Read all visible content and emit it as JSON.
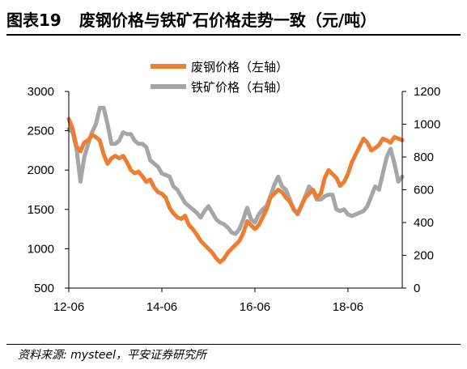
{
  "figure": {
    "label": "图表19",
    "title": "废钢价格与铁矿石价格走势一致（元/吨）",
    "source": "资料来源: mysteel，平安证券研究所"
  },
  "colors": {
    "scrap_steel": "#ED7D31",
    "iron_ore": "#A6A6A6",
    "axis": "#000000"
  },
  "chart_data": {
    "type": "line",
    "x_ticks": [
      "12-06",
      "14-06",
      "16-06",
      "18-06"
    ],
    "x_tick_dates": [
      "2012-06",
      "2014-06",
      "2016-06",
      "2018-06"
    ],
    "xlim": [
      "2012-06",
      "2019-08"
    ],
    "ylim_left": [
      500,
      3000
    ],
    "yticks_left": [
      500,
      1000,
      1500,
      2000,
      2500,
      3000
    ],
    "ylim_right": [
      0,
      1200
    ],
    "yticks_right": [
      0,
      200,
      400,
      600,
      800,
      1000,
      1200
    ],
    "legend_placement": "top-center",
    "grid": false,
    "series": [
      {
        "name": "废钢价格（左轴）",
        "axis": "left",
        "x": [
          "2012-06",
          "2012-07",
          "2012-08",
          "2012-09",
          "2012-10",
          "2012-11",
          "2012-12",
          "2013-01",
          "2013-02",
          "2013-03",
          "2013-04",
          "2013-05",
          "2013-06",
          "2013-07",
          "2013-08",
          "2013-09",
          "2013-10",
          "2013-11",
          "2013-12",
          "2014-01",
          "2014-02",
          "2014-03",
          "2014-04",
          "2014-05",
          "2014-06",
          "2014-07",
          "2014-08",
          "2014-09",
          "2014-10",
          "2014-11",
          "2014-12",
          "2015-01",
          "2015-02",
          "2015-03",
          "2015-04",
          "2015-05",
          "2015-06",
          "2015-07",
          "2015-08",
          "2015-09",
          "2015-10",
          "2015-11",
          "2015-12",
          "2016-01",
          "2016-02",
          "2016-03",
          "2016-04",
          "2016-05",
          "2016-06",
          "2016-07",
          "2016-08",
          "2016-09",
          "2016-10",
          "2016-11",
          "2016-12",
          "2017-01",
          "2017-02",
          "2017-03",
          "2017-04",
          "2017-05",
          "2017-06",
          "2017-07",
          "2017-08",
          "2017-09",
          "2017-10",
          "2017-11",
          "2017-12",
          "2018-01",
          "2018-02",
          "2018-03",
          "2018-04",
          "2018-05",
          "2018-06",
          "2018-07",
          "2018-08",
          "2018-09",
          "2018-10",
          "2018-11",
          "2018-12",
          "2019-01",
          "2019-02",
          "2019-03",
          "2019-04",
          "2019-05",
          "2019-06",
          "2019-07",
          "2019-08"
        ],
        "values": [
          2650,
          2520,
          2300,
          2240,
          2350,
          2380,
          2450,
          2420,
          2380,
          2200,
          2080,
          2150,
          2180,
          2150,
          2180,
          2100,
          2000,
          1960,
          1980,
          1920,
          1850,
          1880,
          1780,
          1720,
          1700,
          1650,
          1520,
          1450,
          1400,
          1380,
          1420,
          1300,
          1250,
          1180,
          1100,
          1050,
          1000,
          950,
          880,
          830,
          870,
          950,
          1000,
          1050,
          1100,
          1200,
          1350,
          1300,
          1250,
          1300,
          1400,
          1500,
          1650,
          1700,
          1750,
          1720,
          1650,
          1600,
          1500,
          1450,
          1550,
          1650,
          1700,
          1750,
          1650,
          1700,
          1900,
          2000,
          1950,
          1900,
          1800,
          1850,
          1950,
          2100,
          2200,
          2300,
          2400,
          2350,
          2250,
          2280,
          2320,
          2400,
          2380,
          2350,
          2420,
          2400,
          2380
        ]
      },
      {
        "name": "铁矿价格（右轴）",
        "axis": "right",
        "x": [
          "2012-06",
          "2012-07",
          "2012-08",
          "2012-09",
          "2012-10",
          "2012-11",
          "2012-12",
          "2013-01",
          "2013-02",
          "2013-03",
          "2013-04",
          "2013-05",
          "2013-06",
          "2013-07",
          "2013-08",
          "2013-09",
          "2013-10",
          "2013-11",
          "2013-12",
          "2014-01",
          "2014-02",
          "2014-03",
          "2014-04",
          "2014-05",
          "2014-06",
          "2014-07",
          "2014-08",
          "2014-09",
          "2014-10",
          "2014-11",
          "2014-12",
          "2015-01",
          "2015-02",
          "2015-03",
          "2015-04",
          "2015-05",
          "2015-06",
          "2015-07",
          "2015-08",
          "2015-09",
          "2015-10",
          "2015-11",
          "2015-12",
          "2016-01",
          "2016-02",
          "2016-03",
          "2016-04",
          "2016-05",
          "2016-06",
          "2016-07",
          "2016-08",
          "2016-09",
          "2016-10",
          "2016-11",
          "2016-12",
          "2017-01",
          "2017-02",
          "2017-03",
          "2017-04",
          "2017-05",
          "2017-06",
          "2017-07",
          "2017-08",
          "2017-09",
          "2017-10",
          "2017-11",
          "2017-12",
          "2018-01",
          "2018-02",
          "2018-03",
          "2018-04",
          "2018-05",
          "2018-06",
          "2018-07",
          "2018-08",
          "2018-09",
          "2018-10",
          "2018-11",
          "2018-12",
          "2019-01",
          "2019-02",
          "2019-03",
          "2019-04",
          "2019-05",
          "2019-06",
          "2019-07",
          "2019-08"
        ],
        "values": [
          970,
          950,
          850,
          650,
          800,
          880,
          950,
          1000,
          1100,
          1100,
          1000,
          880,
          880,
          900,
          950,
          940,
          940,
          900,
          880,
          880,
          860,
          780,
          760,
          740,
          700,
          690,
          680,
          620,
          600,
          560,
          520,
          500,
          480,
          460,
          430,
          470,
          500,
          460,
          420,
          400,
          390,
          370,
          340,
          330,
          360,
          420,
          490,
          420,
          400,
          450,
          480,
          500,
          560,
          630,
          680,
          620,
          600,
          540,
          480,
          450,
          500,
          560,
          620,
          590,
          540,
          540,
          560,
          570,
          570,
          480,
          470,
          480,
          450,
          440,
          450,
          460,
          470,
          500,
          560,
          620,
          600,
          700,
          800,
          850,
          760,
          650,
          680
        ]
      }
    ]
  }
}
